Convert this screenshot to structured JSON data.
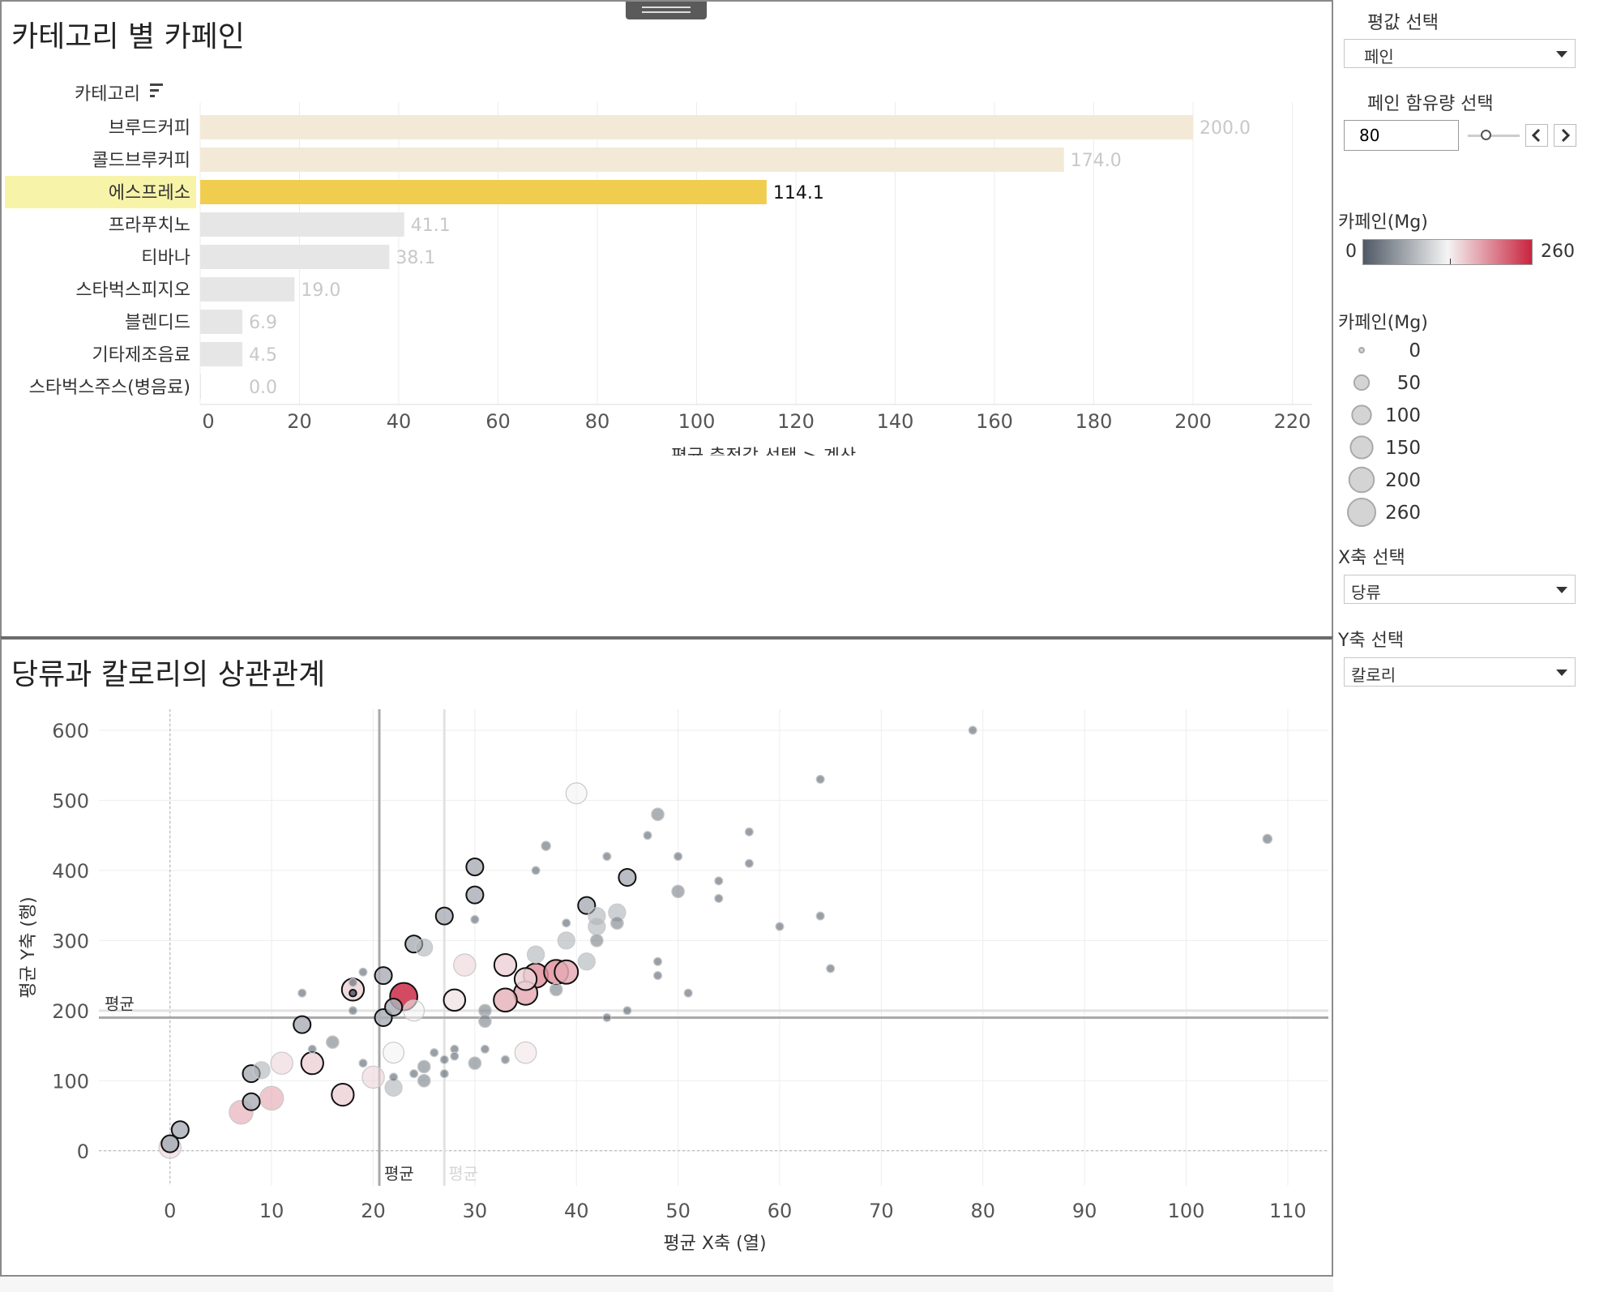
{
  "top_chart": {
    "title": "카테고리 별 카페인",
    "ylabel": "카테고리",
    "xlabel": "평균 측정값 선택 > 계산",
    "highlight_color": "#f0cd4e",
    "highlight_row_color": "#f7f3a9",
    "chart_data": {
      "type": "bar",
      "orientation": "horizontal",
      "categories": [
        "브루드커피",
        "콜드브루커피",
        "에스프레소",
        "프라푸치노",
        "티바나",
        "스타벅스피지오",
        "블렌디드",
        "기타제조음료",
        "스타벅스주스(병음료)"
      ],
      "values": [
        200.0,
        174.0,
        114.1,
        41.1,
        38.1,
        19.0,
        6.9,
        4.5,
        0.0
      ],
      "value_labels": [
        "200.0",
        "174.0",
        "114.1",
        "41.1",
        "38.1",
        "19.0",
        "6.9",
        "4.5",
        "0.0"
      ],
      "highlighted": "에스프레소",
      "xlim": [
        0,
        224
      ],
      "xticks": [
        0,
        20,
        40,
        60,
        80,
        100,
        120,
        140,
        160,
        180,
        200,
        220
      ],
      "grid": true
    }
  },
  "bottom_chart": {
    "title": "당류과 칼로리의 상관관계",
    "xlabel": "평균 X축 (열)",
    "ylabel": "평균 Y축 (행)",
    "avg_label": "평균",
    "chart_data": {
      "type": "scatter",
      "xlim": [
        -7,
        114
      ],
      "ylim": [
        -50,
        630
      ],
      "xticks": [
        0,
        10,
        20,
        30,
        40,
        50,
        60,
        70,
        80,
        90,
        100,
        110
      ],
      "yticks": [
        0,
        100,
        200,
        300,
        400,
        500,
        600
      ],
      "reference_lines": {
        "x_average": [
          20.6,
          27
        ],
        "y_average": [
          190,
          200
        ]
      },
      "points": [
        {
          "x": 0,
          "y": 5,
          "c": 150,
          "h": false
        },
        {
          "x": 0,
          "y": 10,
          "c": 75,
          "h": false
        },
        {
          "x": 1,
          "y": 30,
          "c": 75,
          "h": true
        },
        {
          "x": 0,
          "y": 10,
          "c": 75,
          "h": true
        },
        {
          "x": 7,
          "y": 55,
          "c": 180,
          "h": false
        },
        {
          "x": 10,
          "y": 75,
          "c": 180,
          "h": false
        },
        {
          "x": 8,
          "y": 70,
          "c": 75,
          "h": true
        },
        {
          "x": 8,
          "y": 110,
          "c": 75,
          "h": true
        },
        {
          "x": 9,
          "y": 115,
          "c": 75,
          "h": false
        },
        {
          "x": 11,
          "y": 125,
          "c": 150,
          "h": false
        },
        {
          "x": 14,
          "y": 125,
          "c": 150,
          "h": true
        },
        {
          "x": 17,
          "y": 80,
          "c": 150,
          "h": true
        },
        {
          "x": 13,
          "y": 180,
          "c": 75,
          "h": true
        },
        {
          "x": 16,
          "y": 155,
          "c": 30,
          "h": false
        },
        {
          "x": 18,
          "y": 230,
          "c": 150,
          "h": true
        },
        {
          "x": 18,
          "y": 225,
          "c": 2,
          "h": true
        },
        {
          "x": 20,
          "y": 105,
          "c": 150,
          "h": false
        },
        {
          "x": 21,
          "y": 190,
          "c": 75,
          "h": true
        },
        {
          "x": 21,
          "y": 250,
          "c": 75,
          "h": true
        },
        {
          "x": 22,
          "y": 205,
          "c": 75,
          "h": true
        },
        {
          "x": 23,
          "y": 220,
          "c": 255,
          "h": true
        },
        {
          "x": 24,
          "y": 200,
          "c": 130,
          "h": false
        },
        {
          "x": 22,
          "y": 140,
          "c": 130,
          "h": false
        },
        {
          "x": 22,
          "y": 90,
          "c": 75,
          "h": false
        },
        {
          "x": 24,
          "y": 295,
          "c": 75,
          "h": true
        },
        {
          "x": 25,
          "y": 290,
          "c": 75,
          "h": false
        },
        {
          "x": 25,
          "y": 120,
          "c": 30,
          "h": false
        },
        {
          "x": 25,
          "y": 100,
          "c": 30,
          "h": false
        },
        {
          "x": 27,
          "y": 335,
          "c": 75,
          "h": true
        },
        {
          "x": 28,
          "y": 215,
          "c": 140,
          "h": true
        },
        {
          "x": 29,
          "y": 265,
          "c": 150,
          "h": false
        },
        {
          "x": 30,
          "y": 405,
          "c": 75,
          "h": true
        },
        {
          "x": 30,
          "y": 365,
          "c": 75,
          "h": true
        },
        {
          "x": 31,
          "y": 200,
          "c": 30,
          "h": false
        },
        {
          "x": 31,
          "y": 185,
          "c": 30,
          "h": false
        },
        {
          "x": 30,
          "y": 125,
          "c": 30,
          "h": false
        },
        {
          "x": 33,
          "y": 265,
          "c": 150,
          "h": true
        },
        {
          "x": 33,
          "y": 215,
          "c": 170,
          "h": true
        },
        {
          "x": 35,
          "y": 225,
          "c": 175,
          "h": true
        },
        {
          "x": 35,
          "y": 245,
          "c": 150,
          "h": true
        },
        {
          "x": 36,
          "y": 250,
          "c": 190,
          "h": true
        },
        {
          "x": 35,
          "y": 140,
          "c": 140,
          "h": false
        },
        {
          "x": 36,
          "y": 280,
          "c": 75,
          "h": false
        },
        {
          "x": 38,
          "y": 255,
          "c": 190,
          "h": true
        },
        {
          "x": 39,
          "y": 255,
          "c": 175,
          "h": true
        },
        {
          "x": 38,
          "y": 230,
          "c": 30,
          "h": false
        },
        {
          "x": 39,
          "y": 300,
          "c": 75,
          "h": false
        },
        {
          "x": 37,
          "y": 435,
          "c": 10,
          "h": false
        },
        {
          "x": 40,
          "y": 510,
          "c": 130,
          "h": false
        },
        {
          "x": 41,
          "y": 350,
          "c": 75,
          "h": true
        },
        {
          "x": 41,
          "y": 270,
          "c": 75,
          "h": false
        },
        {
          "x": 42,
          "y": 335,
          "c": 75,
          "h": false
        },
        {
          "x": 42,
          "y": 320,
          "c": 75,
          "h": false
        },
        {
          "x": 44,
          "y": 340,
          "c": 75,
          "h": false
        },
        {
          "x": 45,
          "y": 390,
          "c": 75,
          "h": true
        },
        {
          "x": 44,
          "y": 325,
          "c": 30,
          "h": false
        },
        {
          "x": 48,
          "y": 480,
          "c": 30,
          "h": false
        },
        {
          "x": 50,
          "y": 370,
          "c": 30,
          "h": false
        },
        {
          "x": 42,
          "y": 300,
          "c": 30,
          "h": false
        },
        {
          "x": 43,
          "y": 420,
          "c": 5,
          "h": false
        },
        {
          "x": 47,
          "y": 450,
          "c": 5,
          "h": false
        },
        {
          "x": 50,
          "y": 420,
          "c": 5,
          "h": false
        },
        {
          "x": 48,
          "y": 270,
          "c": 5,
          "h": false
        },
        {
          "x": 48,
          "y": 250,
          "c": 5,
          "h": false
        },
        {
          "x": 51,
          "y": 225,
          "c": 5,
          "h": false
        },
        {
          "x": 54,
          "y": 385,
          "c": 5,
          "h": false
        },
        {
          "x": 54,
          "y": 360,
          "c": 5,
          "h": false
        },
        {
          "x": 57,
          "y": 455,
          "c": 5,
          "h": false
        },
        {
          "x": 57,
          "y": 410,
          "c": 5,
          "h": false
        },
        {
          "x": 60,
          "y": 320,
          "c": 5,
          "h": false
        },
        {
          "x": 64,
          "y": 530,
          "c": 5,
          "h": false
        },
        {
          "x": 64,
          "y": 335,
          "c": 5,
          "h": false
        },
        {
          "x": 65,
          "y": 260,
          "c": 5,
          "h": false
        },
        {
          "x": 79,
          "y": 600,
          "c": 5,
          "h": false
        },
        {
          "x": 108,
          "y": 445,
          "c": 10,
          "h": false
        },
        {
          "x": 13,
          "y": 225,
          "c": 5,
          "h": false
        },
        {
          "x": 14,
          "y": 145,
          "c": 5,
          "h": false
        },
        {
          "x": 19,
          "y": 125,
          "c": 5,
          "h": false
        },
        {
          "x": 22,
          "y": 105,
          "c": 5,
          "h": false
        },
        {
          "x": 26,
          "y": 140,
          "c": 5,
          "h": false
        },
        {
          "x": 27,
          "y": 130,
          "c": 5,
          "h": false
        },
        {
          "x": 28,
          "y": 145,
          "c": 5,
          "h": false
        },
        {
          "x": 28,
          "y": 135,
          "c": 5,
          "h": false
        },
        {
          "x": 30,
          "y": 330,
          "c": 5,
          "h": false
        },
        {
          "x": 31,
          "y": 145,
          "c": 5,
          "h": false
        },
        {
          "x": 33,
          "y": 130,
          "c": 5,
          "h": false
        },
        {
          "x": 36,
          "y": 400,
          "c": 5,
          "h": false
        },
        {
          "x": 39,
          "y": 325,
          "c": 5,
          "h": false
        },
        {
          "x": 43,
          "y": 190,
          "c": 5,
          "h": false
        },
        {
          "x": 45,
          "y": 200,
          "c": 5,
          "h": false
        },
        {
          "x": 19,
          "y": 255,
          "c": 5,
          "h": false
        },
        {
          "x": 18,
          "y": 240,
          "c": 5,
          "h": false
        },
        {
          "x": 24,
          "y": 110,
          "c": 5,
          "h": false
        },
        {
          "x": 27,
          "y": 110,
          "c": 5,
          "h": false
        },
        {
          "x": 18,
          "y": 200,
          "c": 5,
          "h": false
        }
      ]
    }
  },
  "sidebar": {
    "measure_label": "평값 선택",
    "measure_value": "페인",
    "caffeine_filter_label": "페인 함유량 선택",
    "caffeine_filter_value": "80",
    "slider_fraction": 0.35,
    "color_legend_title": "카페인(Mg)",
    "color_legend_min": "0",
    "color_legend_max": "260",
    "color_low": "#4f5965",
    "color_mid": "#f4f4f4",
    "color_high": "#c9243f",
    "size_legend_title": "카페인(Mg)",
    "size_legend_items": [
      {
        "label": "0",
        "value": 0
      },
      {
        "label": "50",
        "value": 50
      },
      {
        "label": "100",
        "value": 100
      },
      {
        "label": "150",
        "value": 150
      },
      {
        "label": "200",
        "value": 200
      },
      {
        "label": "260",
        "value": 260
      }
    ],
    "x_axis_label": "X축 선택",
    "x_axis_value": "당류",
    "y_axis_label": "Y축 선택",
    "y_axis_value": "칼로리"
  },
  "toolbar": {
    "close_icon": "close-icon",
    "export_icon": "external-link-icon",
    "filter_icon": "filter-icon",
    "more_icon": "caret-down-icon"
  }
}
